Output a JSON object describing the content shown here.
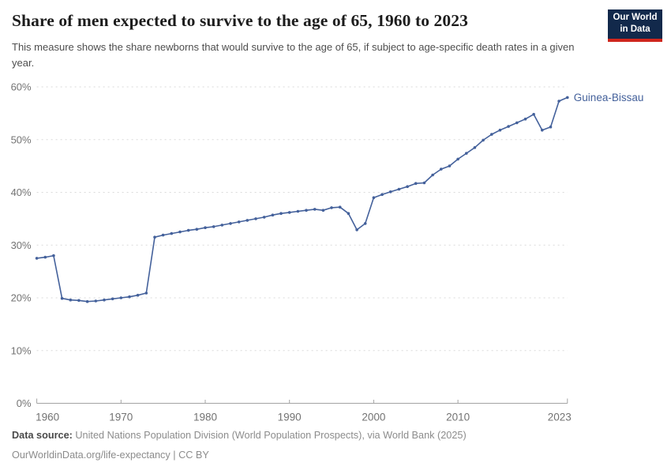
{
  "header": {
    "title": "Share of men expected to survive to the age of 65, 1960 to 2023",
    "subtitle": "This measure shows the share newborns that would survive to the age of 65, if subject to age-specific death rates in a given year.",
    "logo_line1": "Our World",
    "logo_line2": "in Data",
    "logo_bg_color": "#12294b",
    "logo_accent_color": "#d0261d"
  },
  "chart_data": {
    "type": "line",
    "title": "Share of men expected to survive to the age of 65, 1960 to 2023",
    "xlabel": "",
    "ylabel": "",
    "xlim": [
      1960,
      2023
    ],
    "ylim": [
      0,
      60
    ],
    "grid": "horizontal-dashed",
    "legend_position": "end-of-line-label",
    "x_ticks": [
      1960,
      1970,
      1980,
      1990,
      2000,
      2010,
      2023
    ],
    "y_ticks": [
      0,
      10,
      20,
      30,
      40,
      50,
      60
    ],
    "y_tick_labels": [
      "0%",
      "10%",
      "20%",
      "30%",
      "40%",
      "50%",
      "60%"
    ],
    "axis_color": "#a3a3a3",
    "grid_color": "#dadada",
    "tick_label_color": "#737373",
    "series": [
      {
        "name": "Guinea-Bissau",
        "color": "#44619b",
        "years": [
          1960,
          1961,
          1962,
          1963,
          1964,
          1965,
          1966,
          1967,
          1968,
          1969,
          1970,
          1971,
          1972,
          1973,
          1974,
          1975,
          1976,
          1977,
          1978,
          1979,
          1980,
          1981,
          1982,
          1983,
          1984,
          1985,
          1986,
          1987,
          1988,
          1989,
          1990,
          1991,
          1992,
          1993,
          1994,
          1995,
          1996,
          1997,
          1998,
          1999,
          2000,
          2001,
          2002,
          2003,
          2004,
          2005,
          2006,
          2007,
          2008,
          2009,
          2010,
          2011,
          2012,
          2013,
          2014,
          2015,
          2016,
          2017,
          2018,
          2019,
          2020,
          2021,
          2022,
          2023
        ],
        "values": [
          27.5,
          27.7,
          28.0,
          19.9,
          19.6,
          19.5,
          19.3,
          19.4,
          19.6,
          19.8,
          20.0,
          20.2,
          20.5,
          20.9,
          31.5,
          31.9,
          32.2,
          32.5,
          32.8,
          33.0,
          33.3,
          33.5,
          33.8,
          34.1,
          34.4,
          34.7,
          35.0,
          35.3,
          35.7,
          36.0,
          36.2,
          36.4,
          36.6,
          36.8,
          36.6,
          37.1,
          37.2,
          36.0,
          32.9,
          34.1,
          39.0,
          39.6,
          40.1,
          40.6,
          41.1,
          41.7,
          41.8,
          43.3,
          44.4,
          45.0,
          46.3,
          47.4,
          48.5,
          49.9,
          51.0,
          51.8,
          52.5,
          53.2,
          53.9,
          54.8,
          51.8,
          52.4,
          57.3,
          58.0
        ]
      }
    ]
  },
  "footer": {
    "source_label": "Data source:",
    "source_text": "United Nations Population Division (World Population Prospects), via World Bank (2025)",
    "license": "OurWorldinData.org/life-expectancy | CC BY"
  }
}
